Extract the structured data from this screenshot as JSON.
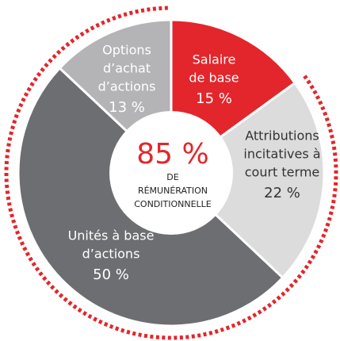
{
  "chart_data": {
    "type": "donut",
    "labels": [
      [
        "Salaire",
        "de base"
      ],
      [
        "Attributions",
        "incitatives à",
        "court terme"
      ],
      [
        "Unités à base",
        "d’actions"
      ],
      [
        "Options",
        "d’achat",
        "d’actions"
      ]
    ],
    "values": [
      15,
      22,
      50,
      13
    ],
    "value_labels": [
      "15 %",
      "22 %",
      "50 %",
      "13 %"
    ],
    "colors": [
      "#e3262b",
      "#dcdcdd",
      "#6d6e71",
      "#b4b4b6"
    ],
    "highlight": {
      "value": 85,
      "label": "85 %",
      "color": "#e3262b"
    },
    "center_text": [
      "DE",
      "RÉMUNÉRATION",
      "CONDITIONNELLE"
    ]
  }
}
